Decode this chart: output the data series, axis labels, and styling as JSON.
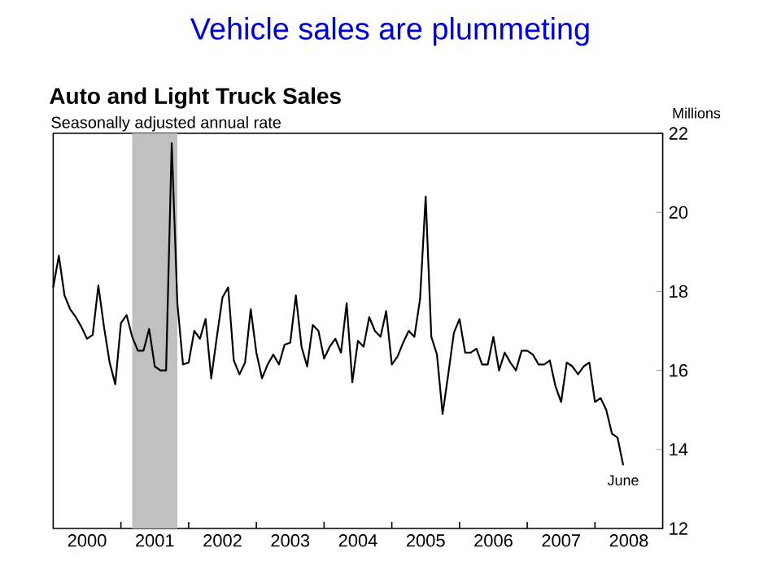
{
  "chart_data": {
    "type": "line",
    "title": "Vehicle sales are plummeting",
    "subtitle": "Auto and Light Truck Sales",
    "annotations": [
      "Seasonally adjusted annual rate",
      {
        "text": "June",
        "x": "2008-06",
        "y": 13.6
      }
    ],
    "ylabel": "Millions",
    "x": [
      "2000-01",
      "2000-02",
      "2000-03",
      "2000-04",
      "2000-05",
      "2000-06",
      "2000-07",
      "2000-08",
      "2000-09",
      "2000-10",
      "2000-11",
      "2000-12",
      "2001-01",
      "2001-02",
      "2001-03",
      "2001-04",
      "2001-05",
      "2001-06",
      "2001-07",
      "2001-08",
      "2001-09",
      "2001-10",
      "2001-11",
      "2001-12",
      "2002-01",
      "2002-02",
      "2002-03",
      "2002-04",
      "2002-05",
      "2002-06",
      "2002-07",
      "2002-08",
      "2002-09",
      "2002-10",
      "2002-11",
      "2002-12",
      "2003-01",
      "2003-02",
      "2003-03",
      "2003-04",
      "2003-05",
      "2003-06",
      "2003-07",
      "2003-08",
      "2003-09",
      "2003-10",
      "2003-11",
      "2003-12",
      "2004-01",
      "2004-02",
      "2004-03",
      "2004-04",
      "2004-05",
      "2004-06",
      "2004-07",
      "2004-08",
      "2004-09",
      "2004-10",
      "2004-11",
      "2004-12",
      "2005-01",
      "2005-02",
      "2005-03",
      "2005-04",
      "2005-05",
      "2005-06",
      "2005-07",
      "2005-08",
      "2005-09",
      "2005-10",
      "2005-11",
      "2005-12",
      "2006-01",
      "2006-02",
      "2006-03",
      "2006-04",
      "2006-05",
      "2006-06",
      "2006-07",
      "2006-08",
      "2006-09",
      "2006-10",
      "2006-11",
      "2006-12",
      "2007-01",
      "2007-02",
      "2007-03",
      "2007-04",
      "2007-05",
      "2007-06",
      "2007-07",
      "2007-08",
      "2007-09",
      "2007-10",
      "2007-11",
      "2007-12",
      "2008-01",
      "2008-02",
      "2008-03",
      "2008-04",
      "2008-05",
      "2008-06"
    ],
    "series": [
      {
        "color": "#000000",
        "values": [
          18.1,
          18.9,
          17.9,
          17.55,
          17.35,
          17.1,
          16.8,
          16.9,
          18.15,
          17.1,
          16.2,
          15.65,
          17.2,
          17.4,
          16.85,
          16.5,
          16.5,
          17.05,
          16.1,
          16.0,
          16.0,
          21.75,
          17.7,
          16.15,
          16.2,
          17.0,
          16.8,
          17.3,
          15.8,
          16.85,
          17.85,
          18.1,
          16.25,
          15.9,
          16.2,
          17.55,
          16.45,
          15.8,
          16.15,
          16.4,
          16.15,
          16.65,
          16.7,
          17.9,
          16.6,
          16.1,
          17.15,
          17.0,
          16.3,
          16.6,
          16.8,
          16.45,
          17.7,
          15.7,
          16.75,
          16.6,
          17.35,
          17.0,
          16.85,
          17.5,
          16.15,
          16.35,
          16.7,
          17.0,
          16.85,
          17.8,
          20.4,
          16.85,
          16.4,
          14.9,
          15.9,
          16.95,
          17.3,
          16.45,
          16.45,
          16.55,
          16.15,
          16.15,
          16.85,
          16.0,
          16.45,
          16.2,
          16.0,
          16.5,
          16.5,
          16.4,
          16.15,
          16.15,
          16.25,
          15.6,
          15.2,
          16.2,
          16.1,
          15.9,
          16.1,
          16.2,
          15.2,
          15.3,
          15.0,
          14.4,
          14.3,
          13.6
        ]
      }
    ],
    "xlim": [
      "2000-01",
      "2009-01"
    ],
    "xticks": [
      {
        "value": "2000-07",
        "label": "2000"
      },
      {
        "value": "2001-01",
        "label": null
      },
      {
        "value": "2001-07",
        "label": "2001"
      },
      {
        "value": "2002-01",
        "label": null
      },
      {
        "value": "2002-07",
        "label": "2002"
      },
      {
        "value": "2003-01",
        "label": null
      },
      {
        "value": "2003-07",
        "label": "2003"
      },
      {
        "value": "2004-01",
        "label": null
      },
      {
        "value": "2004-07",
        "label": "2004"
      },
      {
        "value": "2005-01",
        "label": null
      },
      {
        "value": "2005-07",
        "label": "2005"
      },
      {
        "value": "2006-01",
        "label": null
      },
      {
        "value": "2006-07",
        "label": "2006"
      },
      {
        "value": "2007-01",
        "label": null
      },
      {
        "value": "2007-07",
        "label": "2007"
      },
      {
        "value": "2008-01",
        "label": null
      },
      {
        "value": "2008-07",
        "label": "2008"
      }
    ],
    "ylim": [
      12,
      22
    ],
    "yticks": [
      12,
      14,
      16,
      18,
      20,
      22
    ],
    "bands": [
      {
        "axis": "x",
        "from": "2001-03",
        "to": "2001-11",
        "color": "#c0c0c0"
      }
    ]
  }
}
